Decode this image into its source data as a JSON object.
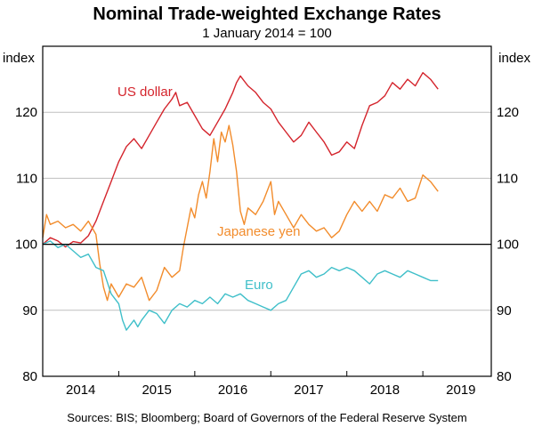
{
  "chart_data": {
    "type": "line",
    "title": "Nominal Trade-weighted Exchange Rates",
    "subtitle": "1 January 2014 = 100",
    "ylabel_left": "index",
    "ylabel_right": "index",
    "ylim": [
      80,
      130
    ],
    "yticks": [
      80,
      90,
      100,
      110,
      120
    ],
    "xlim": [
      2014.0,
      2019.9
    ],
    "xticks": [
      {
        "label": "2014",
        "value": 2014.5
      },
      {
        "label": "2015",
        "value": 2015.5
      },
      {
        "label": "2016",
        "value": 2016.5
      },
      {
        "label": "2017",
        "value": 2017.5
      },
      {
        "label": "2018",
        "value": 2018.5
      },
      {
        "label": "2019",
        "value": 2019.5
      }
    ],
    "reference_line": 100,
    "series": [
      {
        "name": "US dollar",
        "color": "#d4242c",
        "points": [
          [
            2014.0,
            100.0
          ],
          [
            2014.1,
            101.0
          ],
          [
            2014.2,
            100.5
          ],
          [
            2014.3,
            99.6
          ],
          [
            2014.4,
            100.4
          ],
          [
            2014.5,
            100.2
          ],
          [
            2014.6,
            101.3
          ],
          [
            2014.7,
            103.5
          ],
          [
            2014.8,
            106.5
          ],
          [
            2014.9,
            109.5
          ],
          [
            2015.0,
            112.5
          ],
          [
            2015.1,
            114.8
          ],
          [
            2015.2,
            116.0
          ],
          [
            2015.3,
            114.5
          ],
          [
            2015.4,
            116.5
          ],
          [
            2015.5,
            118.5
          ],
          [
            2015.6,
            120.5
          ],
          [
            2015.7,
            122.0
          ],
          [
            2015.75,
            123.0
          ],
          [
            2015.8,
            121.0
          ],
          [
            2015.9,
            121.5
          ],
          [
            2016.0,
            119.5
          ],
          [
            2016.1,
            117.5
          ],
          [
            2016.2,
            116.5
          ],
          [
            2016.3,
            118.5
          ],
          [
            2016.4,
            120.5
          ],
          [
            2016.5,
            123.0
          ],
          [
            2016.55,
            124.5
          ],
          [
            2016.6,
            125.5
          ],
          [
            2016.7,
            124.0
          ],
          [
            2016.8,
            123.0
          ],
          [
            2016.9,
            121.5
          ],
          [
            2017.0,
            120.5
          ],
          [
            2017.1,
            118.5
          ],
          [
            2017.2,
            117.0
          ],
          [
            2017.3,
            115.5
          ],
          [
            2017.4,
            116.5
          ],
          [
            2017.5,
            118.5
          ],
          [
            2017.6,
            117.0
          ],
          [
            2017.7,
            115.5
          ],
          [
            2017.8,
            113.5
          ],
          [
            2017.9,
            114.0
          ],
          [
            2018.0,
            115.5
          ],
          [
            2018.1,
            114.5
          ],
          [
            2018.2,
            118.0
          ],
          [
            2018.3,
            121.0
          ],
          [
            2018.4,
            121.5
          ],
          [
            2018.5,
            122.5
          ],
          [
            2018.6,
            124.5
          ],
          [
            2018.7,
            123.5
          ],
          [
            2018.8,
            125.0
          ],
          [
            2018.9,
            124.0
          ],
          [
            2019.0,
            126.0
          ],
          [
            2019.1,
            125.0
          ],
          [
            2019.2,
            123.5
          ]
        ]
      },
      {
        "name": "Japanese yen",
        "color": "#f28c2c",
        "points": [
          [
            2014.0,
            101.0
          ],
          [
            2014.05,
            104.5
          ],
          [
            2014.1,
            103.0
          ],
          [
            2014.2,
            103.5
          ],
          [
            2014.3,
            102.5
          ],
          [
            2014.4,
            103.0
          ],
          [
            2014.5,
            102.0
          ],
          [
            2014.6,
            103.5
          ],
          [
            2014.7,
            101.5
          ],
          [
            2014.75,
            97.0
          ],
          [
            2014.8,
            93.5
          ],
          [
            2014.85,
            91.5
          ],
          [
            2014.9,
            94.0
          ],
          [
            2015.0,
            92.0
          ],
          [
            2015.1,
            94.0
          ],
          [
            2015.2,
            93.5
          ],
          [
            2015.3,
            95.0
          ],
          [
            2015.4,
            91.5
          ],
          [
            2015.5,
            93.0
          ],
          [
            2015.6,
            96.5
          ],
          [
            2015.7,
            95.0
          ],
          [
            2015.8,
            96.0
          ],
          [
            2015.85,
            99.5
          ],
          [
            2015.9,
            102.5
          ],
          [
            2015.95,
            105.5
          ],
          [
            2016.0,
            104.0
          ],
          [
            2016.05,
            107.5
          ],
          [
            2016.1,
            109.5
          ],
          [
            2016.15,
            107.0
          ],
          [
            2016.2,
            111.0
          ],
          [
            2016.25,
            116.0
          ],
          [
            2016.3,
            112.5
          ],
          [
            2016.35,
            117.0
          ],
          [
            2016.4,
            115.5
          ],
          [
            2016.45,
            118.0
          ],
          [
            2016.5,
            115.0
          ],
          [
            2016.55,
            111.0
          ],
          [
            2016.6,
            105.0
          ],
          [
            2016.65,
            103.0
          ],
          [
            2016.7,
            105.5
          ],
          [
            2016.8,
            104.5
          ],
          [
            2016.9,
            106.5
          ],
          [
            2017.0,
            109.5
          ],
          [
            2017.05,
            104.5
          ],
          [
            2017.1,
            106.5
          ],
          [
            2017.2,
            104.5
          ],
          [
            2017.3,
            102.5
          ],
          [
            2017.4,
            104.5
          ],
          [
            2017.5,
            103.0
          ],
          [
            2017.6,
            102.0
          ],
          [
            2017.7,
            102.5
          ],
          [
            2017.8,
            101.0
          ],
          [
            2017.9,
            102.0
          ],
          [
            2018.0,
            104.5
          ],
          [
            2018.1,
            106.5
          ],
          [
            2018.2,
            105.0
          ],
          [
            2018.3,
            106.5
          ],
          [
            2018.4,
            105.0
          ],
          [
            2018.5,
            107.5
          ],
          [
            2018.6,
            107.0
          ],
          [
            2018.7,
            108.5
          ],
          [
            2018.8,
            106.5
          ],
          [
            2018.9,
            107.0
          ],
          [
            2019.0,
            110.5
          ],
          [
            2019.1,
            109.5
          ],
          [
            2019.2,
            108.0
          ]
        ]
      },
      {
        "name": "Euro",
        "color": "#3fbfc9",
        "points": [
          [
            2014.0,
            100.0
          ],
          [
            2014.1,
            100.5
          ],
          [
            2014.2,
            99.5
          ],
          [
            2014.3,
            100.0
          ],
          [
            2014.4,
            99.0
          ],
          [
            2014.5,
            98.0
          ],
          [
            2014.6,
            98.5
          ],
          [
            2014.7,
            96.5
          ],
          [
            2014.8,
            96.0
          ],
          [
            2014.9,
            92.5
          ],
          [
            2015.0,
            91.0
          ],
          [
            2015.05,
            88.5
          ],
          [
            2015.1,
            87.0
          ],
          [
            2015.2,
            88.5
          ],
          [
            2015.25,
            87.5
          ],
          [
            2015.3,
            88.5
          ],
          [
            2015.4,
            90.0
          ],
          [
            2015.5,
            89.5
          ],
          [
            2015.6,
            88.0
          ],
          [
            2015.7,
            90.0
          ],
          [
            2015.8,
            91.0
          ],
          [
            2015.9,
            90.5
          ],
          [
            2016.0,
            91.5
          ],
          [
            2016.1,
            91.0
          ],
          [
            2016.2,
            92.0
          ],
          [
            2016.3,
            91.0
          ],
          [
            2016.4,
            92.5
          ],
          [
            2016.5,
            92.0
          ],
          [
            2016.6,
            92.5
          ],
          [
            2016.7,
            91.5
          ],
          [
            2016.8,
            91.0
          ],
          [
            2016.9,
            90.5
          ],
          [
            2017.0,
            90.0
          ],
          [
            2017.1,
            91.0
          ],
          [
            2017.2,
            91.5
          ],
          [
            2017.3,
            93.5
          ],
          [
            2017.4,
            95.5
          ],
          [
            2017.5,
            96.0
          ],
          [
            2017.6,
            95.0
          ],
          [
            2017.7,
            95.5
          ],
          [
            2017.8,
            96.5
          ],
          [
            2017.9,
            96.0
          ],
          [
            2018.0,
            96.5
          ],
          [
            2018.1,
            96.0
          ],
          [
            2018.2,
            95.0
          ],
          [
            2018.3,
            94.0
          ],
          [
            2018.4,
            95.5
          ],
          [
            2018.5,
            96.0
          ],
          [
            2018.6,
            95.5
          ],
          [
            2018.7,
            95.0
          ],
          [
            2018.8,
            96.0
          ],
          [
            2018.9,
            95.5
          ],
          [
            2019.0,
            95.0
          ],
          [
            2019.1,
            94.5
          ],
          [
            2019.2,
            94.5
          ]
        ]
      }
    ],
    "annotations": [
      {
        "text": "US dollar",
        "series": "US dollar"
      },
      {
        "text": "Japanese yen",
        "series": "Japanese yen"
      },
      {
        "text": "Euro",
        "series": "Euro"
      }
    ],
    "source": "Sources: BIS; Bloomberg; Board of Governors of the Federal Reserve System"
  }
}
